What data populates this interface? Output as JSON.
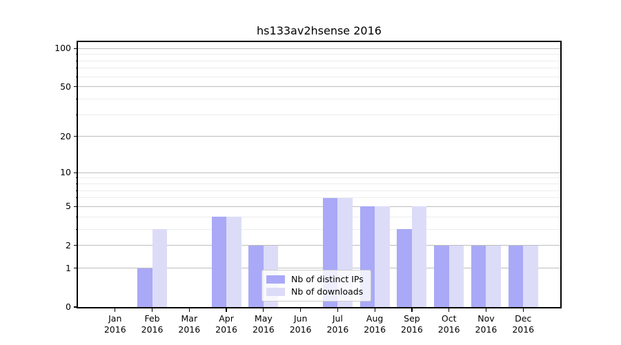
{
  "chart_data": {
    "type": "bar",
    "title": "hs133av2hsense 2016",
    "x_year": "2016",
    "categories": [
      "Jan",
      "Feb",
      "Mar",
      "Apr",
      "May",
      "Jun",
      "Jul",
      "Aug",
      "Sep",
      "Oct",
      "Nov",
      "Dec"
    ],
    "series": [
      {
        "name": "Nb of distinct IPs",
        "color": "#a9a9f7",
        "values": [
          0,
          1,
          0,
          4,
          2,
          0,
          6,
          5,
          3,
          2,
          2,
          2
        ]
      },
      {
        "name": "Nb of downloads",
        "color": "#dcdcf9",
        "values": [
          0,
          3,
          0,
          4,
          2,
          0,
          6,
          5,
          5,
          2,
          2,
          2
        ]
      }
    ],
    "yscale": "log1p",
    "ylim": [
      0,
      112
    ],
    "yticks_major": [
      0,
      1,
      2,
      5,
      10,
      20,
      50,
      100
    ],
    "yticks_minor": [
      3,
      4,
      6,
      7,
      8,
      9,
      30,
      40,
      60,
      70,
      80,
      90
    ],
    "grid": true,
    "legend_position": "lower-center",
    "colors": {
      "grid_major": "#bdbdbd",
      "grid_minor": "#ececec",
      "axis": "#000000",
      "legend_border": "#cccccc"
    }
  }
}
